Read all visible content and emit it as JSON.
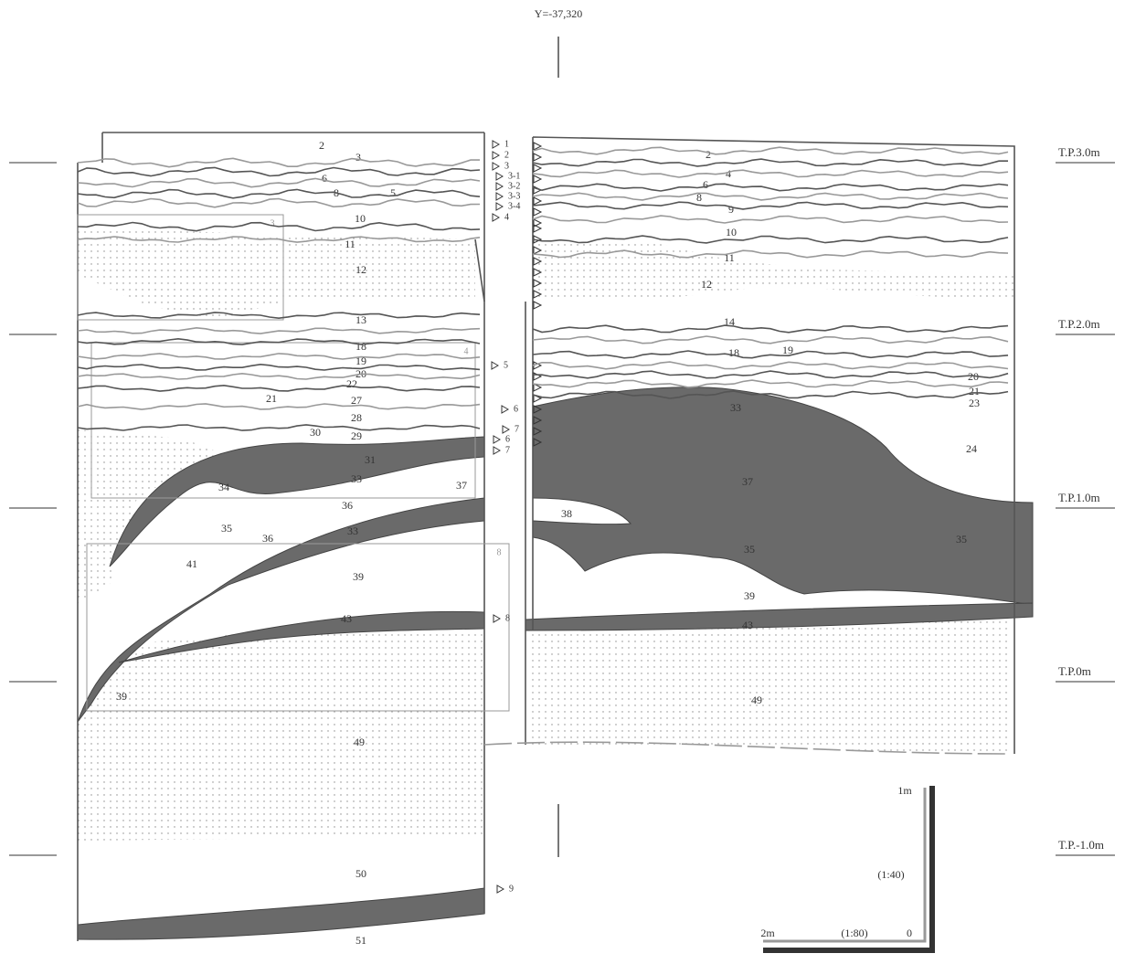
{
  "header": {
    "coordinate": "Y=-37,320"
  },
  "elevations": [
    "T.P.3.0m",
    "T.P.2.0m",
    "T.P.1.0m",
    "T.P.0m",
    "T.P.-1.0m"
  ],
  "scale": {
    "top": "1m",
    "vertical_ratio": "(1:40)",
    "left": "2m",
    "horizontal_ratio": "(1:80)",
    "zero": "0"
  },
  "left_layers": [
    "2",
    "3",
    "6",
    "8",
    "5",
    "10",
    "11",
    "12",
    "13",
    "18",
    "19",
    "20",
    "22",
    "21",
    "27",
    "28",
    "30",
    "29",
    "31",
    "33",
    "34",
    "35",
    "36",
    "37",
    "36",
    "33",
    "41",
    "39",
    "43",
    "39",
    "49",
    "50",
    "51"
  ],
  "right_layers": [
    "2",
    "4",
    "6",
    "8",
    "9",
    "10",
    "11",
    "12",
    "14",
    "18",
    "19",
    "20",
    "21",
    "23",
    "33",
    "24",
    "37",
    "38",
    "35",
    "35",
    "39",
    "43",
    "49"
  ],
  "markers": [
    "1",
    "2",
    "3",
    "3-1",
    "3-2",
    "3-3",
    "3-4",
    "4",
    "5",
    "6",
    "7",
    "6",
    "7",
    "8",
    "9"
  ],
  "boxes": [
    "3",
    "4",
    "8"
  ]
}
